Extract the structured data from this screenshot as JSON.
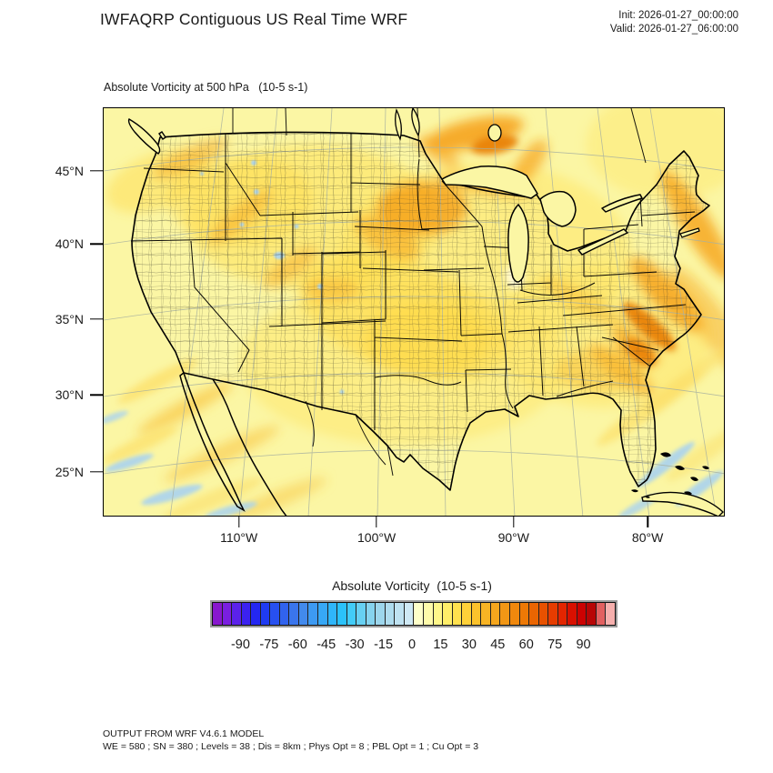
{
  "theme": {
    "page_bg": "#ffffff",
    "text": "#1a1a1a",
    "map_base": "#FBF6A4",
    "yellow_wash": "#FFE25A",
    "yellow_bright": "#FFD944",
    "orange": "#F6A41C",
    "orange_deep": "#E87B00",
    "orange_soft": "#F9BE33",
    "yellow_streak": "#FCE06A",
    "blue_patch": "#A9D3F0",
    "graticule": "#A9B2A0",
    "land_line": "#000000"
  },
  "header": {
    "title": "IWFAQRP Contiguous US Real Time WRF",
    "init": "Init: 2026-01-27_00:00:00",
    "valid": "Valid: 2026-01-27_06:00:00"
  },
  "map": {
    "subtitle": "Absolute Vorticity at 500 hPa   (10-5 s-1)",
    "lat_ticks": [
      {
        "label": "45°N",
        "pos_pct": 15.3
      },
      {
        "label": "40°N",
        "pos_pct": 33.3
      },
      {
        "label": "35°N",
        "pos_pct": 51.8
      },
      {
        "label": "30°N",
        "pos_pct": 70.4
      },
      {
        "label": "25°N",
        "pos_pct": 89.3
      }
    ],
    "lon_ticks": [
      {
        "label": "110°W",
        "pos_pct": 21.8
      },
      {
        "label": "100°W",
        "pos_pct": 44.0
      },
      {
        "label": "90°W",
        "pos_pct": 66.1
      },
      {
        "label": "80°W",
        "pos_pct": 87.7
      }
    ]
  },
  "colorbar": {
    "title": "Absolute Vorticity  (10-5 s-1)",
    "min": -105,
    "max": 105,
    "step": 5,
    "tick_labels": [
      "-90",
      "-75",
      "-60",
      "-45",
      "-30",
      "-15",
      "0",
      "15",
      "30",
      "45",
      "60",
      "75",
      "90"
    ],
    "colors": [
      "#8818CE",
      "#7A1FE0",
      "#5B22EA",
      "#3B22F0",
      "#2427F2",
      "#1F3BF2",
      "#2750F0",
      "#3163EE",
      "#3A75EC",
      "#428AED",
      "#3D9AF2",
      "#37A8F6",
      "#2FB6FA",
      "#2BC2FA",
      "#42CCF8",
      "#67D0F2",
      "#86D3EE",
      "#9DD6EC",
      "#AFDCEE",
      "#BFE2F1",
      "#CFE9F5",
      "#FFFFC9",
      "#FFFBAB",
      "#FFF78A",
      "#FFEE69",
      "#FFE14E",
      "#FFD139",
      "#FBC22C",
      "#F8B424",
      "#F5A61D",
      "#F29715",
      "#F0880D",
      "#ED7906",
      "#EA6502",
      "#E85100",
      "#E63C00",
      "#E32500",
      "#D91000",
      "#CC0202",
      "#B80606",
      "#E26060",
      "#F6AFAD"
    ]
  },
  "footer": {
    "line1": "OUTPUT FROM WRF V4.6.1 MODEL",
    "line2": "WE = 580 ; SN = 380 ; Levels = 38 ; Dis = 8km ; Phys Opt = 8 ; PBL Opt = 1 ; Cu Opt = 3"
  },
  "chart_data": {
    "type": "heatmap",
    "title": "Absolute Vorticity at 500 hPa",
    "units": "10-5 s-1",
    "region": "Contiguous US (Lambert conformal map with state and county boundaries)",
    "model": "WRF V4.6.1",
    "init_time": "2026-01-27_00:00:00",
    "valid_time": "2026-01-27_06:00:00",
    "x_tick_labels": [
      "110°W",
      "100°W",
      "90°W",
      "80°W"
    ],
    "y_tick_labels": [
      "45°N",
      "40°N",
      "35°N",
      "30°N",
      "25°N"
    ],
    "colorbar_levels": {
      "min": -105,
      "max": 105,
      "step": 5,
      "labeled": [
        -90,
        -75,
        -60,
        -45,
        -30,
        -15,
        0,
        15,
        30,
        45,
        60,
        75,
        90
      ]
    },
    "legend_position": "bottom",
    "value_summary": "Field mostly +5 to +30 (yellow) over CONUS; maxima ~45-60 (orange) in a vortex over Minnesota/Lake Superior, along an offshore Atlantic band from New England to the Carolinas with a core near Cape Hatteras, and over the southern Appalachians; weak negative streaks (-5 to -15, pale blue) over the subtropical Pacific, Gulf of California and ocean southeast of Florida",
    "grid_info": "WE = 580 ; SN = 380 ; Levels = 38 ; Dis = 8km ; Phys Opt = 8 ; PBL Opt = 1 ; Cu Opt = 3"
  }
}
